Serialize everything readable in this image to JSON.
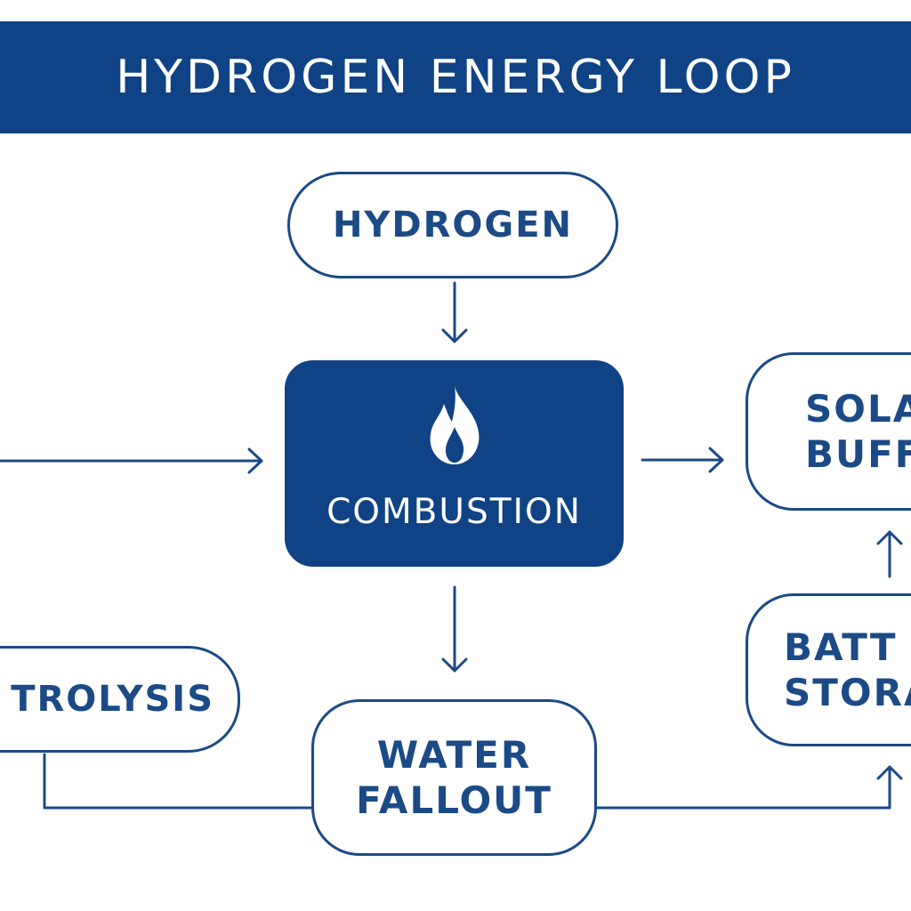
{
  "title": "HYDROGEN ENERGY LOOP",
  "nodes": {
    "hydrogen": {
      "label": "HYDROGEN"
    },
    "combustion": {
      "label": "COMBUSTION",
      "icon": "flame-icon"
    },
    "solar_buffer": {
      "line1": "SOLA",
      "line2": "BUFF"
    },
    "battery_storage": {
      "line1": "BATT",
      "line2": "STORA"
    },
    "electrolysis": {
      "label": "TROLYSIS"
    },
    "water_fallout": {
      "line1": "WATER",
      "line2": "FALLOUT"
    }
  },
  "colors": {
    "primary": "#0f4385",
    "outline": "#1b4a86",
    "background": "#ffffff",
    "text_on_primary": "#ffffff"
  }
}
